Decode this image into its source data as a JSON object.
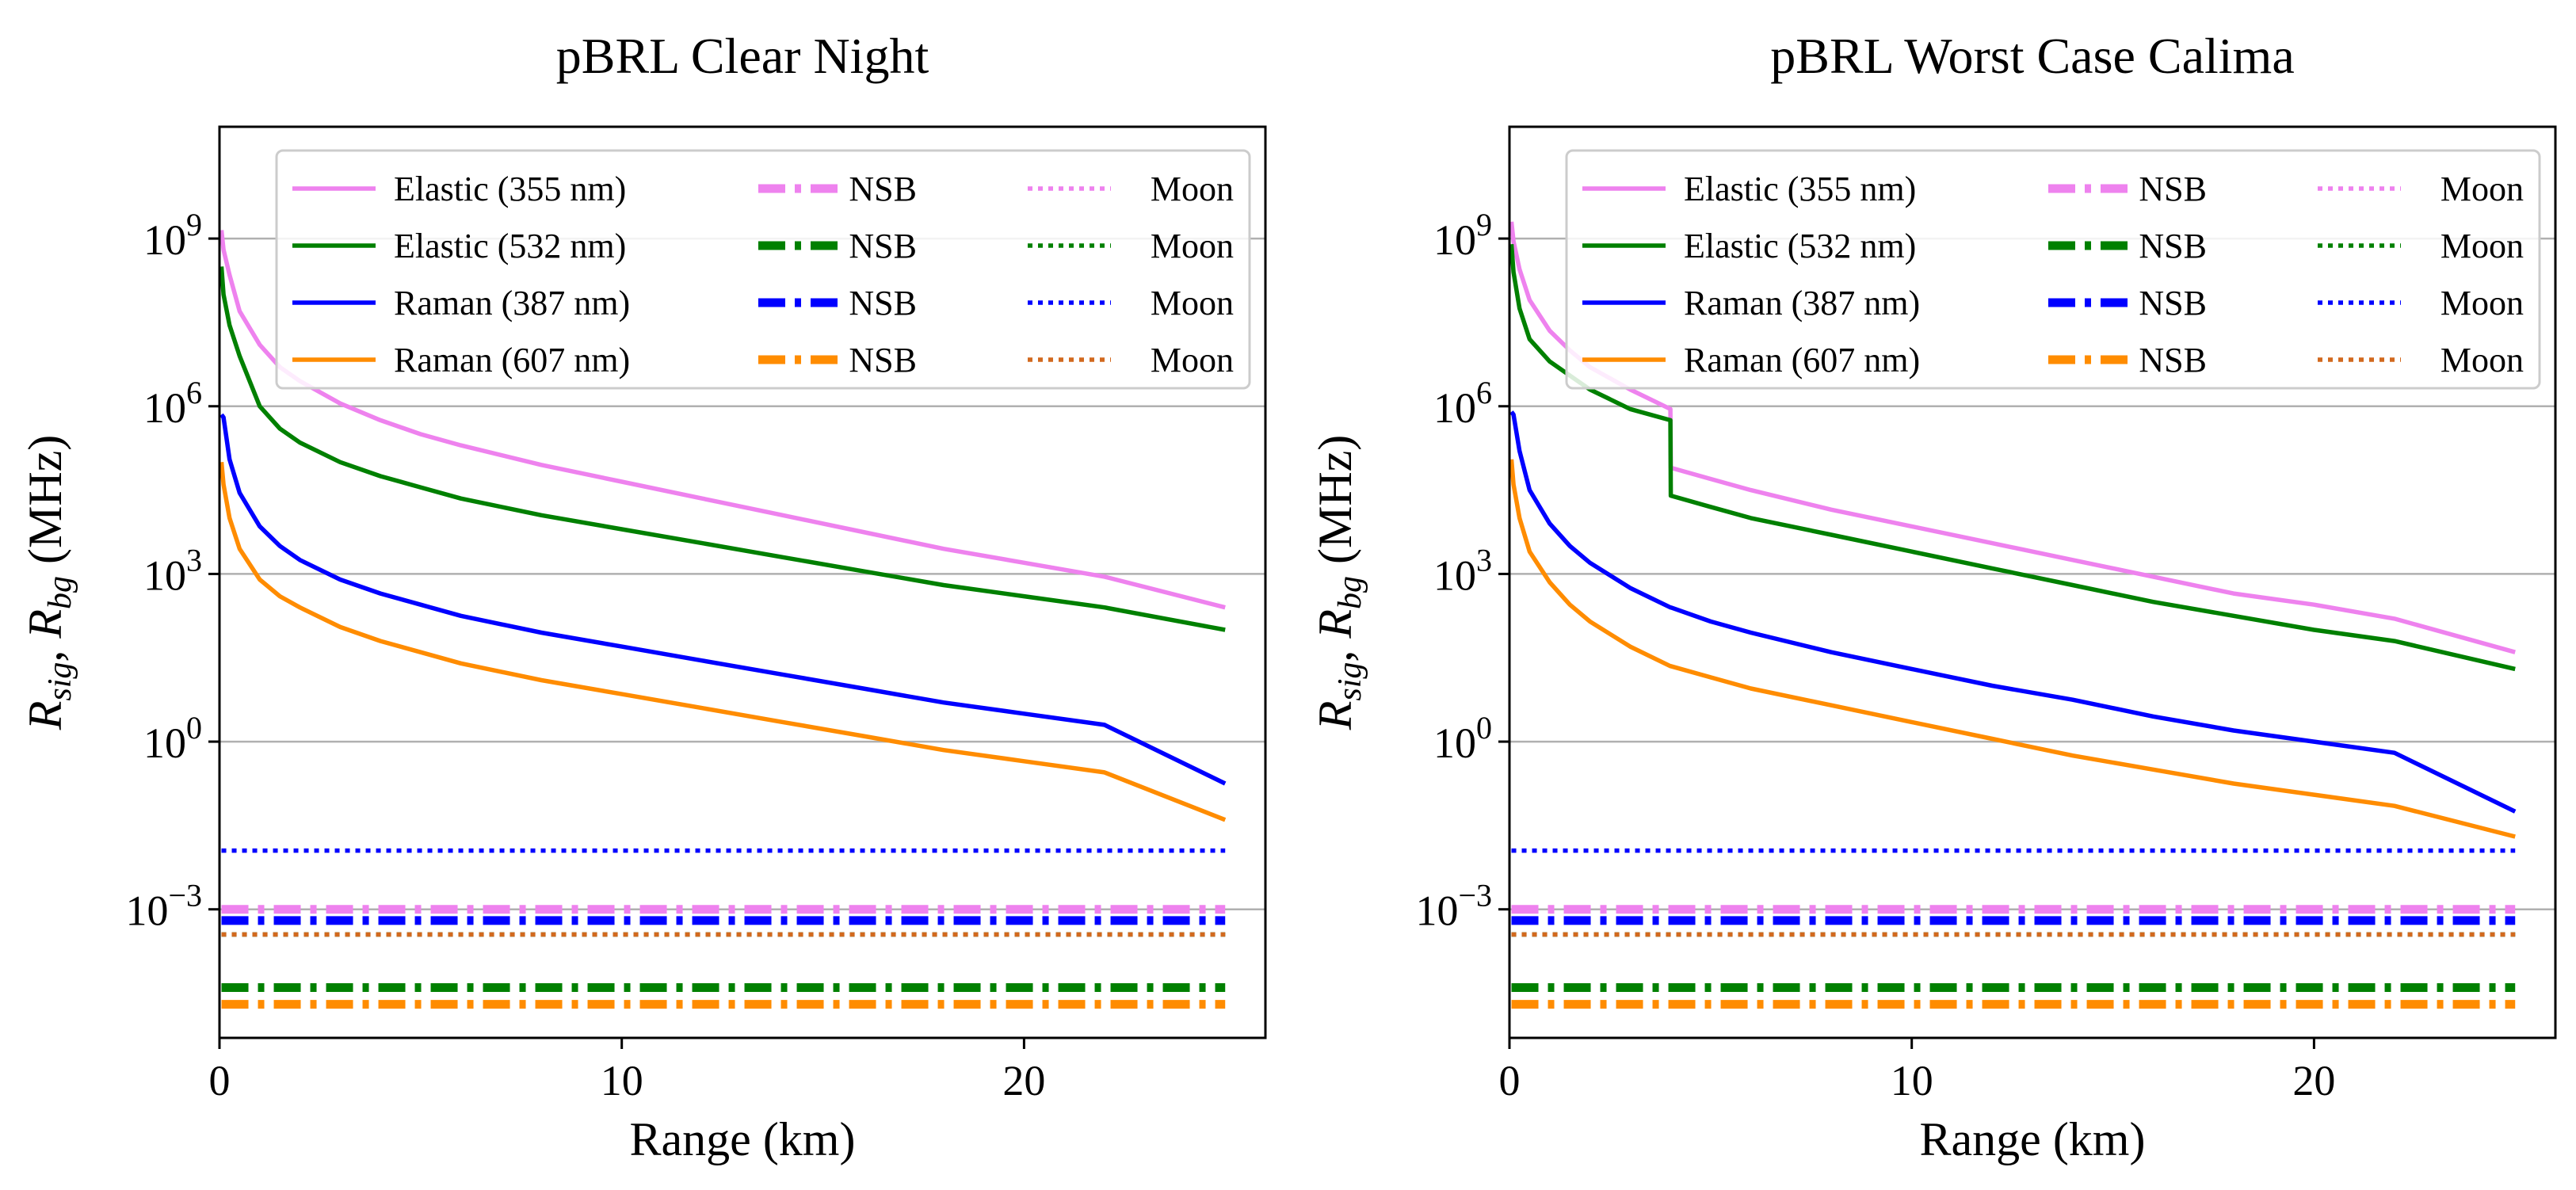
{
  "chart_data": [
    {
      "type": "line",
      "title": "pBRL Clear Night",
      "xlabel": "Range (km)",
      "ylabel_main": "R",
      "ylabel_sub1": "sig",
      "ylabel_sep": ", ",
      "ylabel_sub2": "bg",
      "ylabel_unit": " (MHz)",
      "yscale": "log",
      "xlim": [
        0,
        26
      ],
      "ylim_log10": [
        -5.3,
        11.0
      ],
      "xticks": [
        0,
        10,
        20
      ],
      "xtick_labels": [
        "0",
        "10",
        "20"
      ],
      "yticks_log10": [
        -3,
        0,
        3,
        6,
        9
      ],
      "ytick_base": "10",
      "ytick_exps": [
        "−3",
        "0",
        "3",
        "6",
        "9"
      ],
      "grid_y": true,
      "legend_position": "top-right",
      "signals": [
        {
          "name": "Elastic (355 nm)",
          "color": "#ee82ee",
          "x": [
            0.05,
            0.1,
            0.25,
            0.5,
            1,
            1.5,
            2,
            3,
            4,
            5,
            6,
            8,
            10,
            12,
            14,
            16,
            18,
            20,
            22,
            25
          ],
          "log10": [
            9.15,
            8.8,
            8.35,
            7.7,
            7.1,
            6.7,
            6.45,
            6.05,
            5.75,
            5.5,
            5.3,
            4.95,
            4.65,
            4.35,
            4.05,
            3.75,
            3.45,
            3.2,
            2.95,
            2.4
          ]
        },
        {
          "name": "Elastic (532 nm)",
          "color": "#008000",
          "x": [
            0.05,
            0.1,
            0.25,
            0.5,
            1,
            1.5,
            2,
            3,
            4,
            5,
            6,
            8,
            10,
            12,
            14,
            16,
            18,
            20,
            22,
            25
          ],
          "log10": [
            8.5,
            8.0,
            7.45,
            6.9,
            6.0,
            5.6,
            5.35,
            5.0,
            4.75,
            4.55,
            4.35,
            4.05,
            3.8,
            3.55,
            3.3,
            3.05,
            2.8,
            2.6,
            2.4,
            2.0
          ]
        },
        {
          "name": "Raman (387 nm)",
          "color": "#0000ff",
          "x": [
            0.05,
            0.1,
            0.25,
            0.5,
            1,
            1.5,
            2,
            3,
            4,
            5,
            6,
            8,
            10,
            12,
            14,
            16,
            18,
            20,
            22,
            25
          ],
          "log10": [
            5.85,
            5.8,
            5.05,
            4.45,
            3.85,
            3.5,
            3.25,
            2.9,
            2.65,
            2.45,
            2.25,
            1.95,
            1.7,
            1.45,
            1.2,
            0.95,
            0.7,
            0.5,
            0.3,
            -0.75
          ]
        },
        {
          "name": "Raman (607 nm)",
          "color": "#ff8c00",
          "x": [
            0.05,
            0.1,
            0.25,
            0.5,
            1,
            1.5,
            2,
            3,
            4,
            5,
            6,
            8,
            10,
            12,
            14,
            16,
            18,
            20,
            22,
            25
          ],
          "log10": [
            5.0,
            4.6,
            4.0,
            3.45,
            2.9,
            2.6,
            2.4,
            2.05,
            1.8,
            1.6,
            1.4,
            1.1,
            0.85,
            0.6,
            0.35,
            0.1,
            -0.15,
            -0.35,
            -0.55,
            -1.4
          ]
        }
      ],
      "nsb": [
        {
          "name": "NSB",
          "color": "#ee82ee",
          "log10": -3.0
        },
        {
          "name": "NSB",
          "color": "#008000",
          "log10": -4.4
        },
        {
          "name": "NSB",
          "color": "#0000ff",
          "log10": -3.2
        },
        {
          "name": "NSB",
          "color": "#ff8c00",
          "log10": -4.7
        }
      ],
      "moon": [
        {
          "name": "Moon",
          "color": "#ee82ee",
          "log10": -3.45
        },
        {
          "name": "Moon",
          "color": "#008000",
          "log10": -3.45
        },
        {
          "name": "Moon",
          "color": "#0000ff",
          "log10": -1.95
        },
        {
          "name": "Moon",
          "color": "#d2691e",
          "log10": -3.45
        }
      ]
    },
    {
      "type": "line",
      "title": "pBRL Worst Case Calima",
      "xlabel": "Range (km)",
      "ylabel_main": "R",
      "ylabel_sub1": "sig",
      "ylabel_sep": ", ",
      "ylabel_sub2": "bg",
      "ylabel_unit": " (MHz)",
      "yscale": "log",
      "xlim": [
        0,
        26
      ],
      "ylim_log10": [
        -5.3,
        11.0
      ],
      "xticks": [
        0,
        10,
        20
      ],
      "xtick_labels": [
        "0",
        "10",
        "20"
      ],
      "yticks_log10": [
        -3,
        0,
        3,
        6,
        9
      ],
      "ytick_base": "10",
      "ytick_exps": [
        "−3",
        "0",
        "3",
        "6",
        "9"
      ],
      "grid_y": true,
      "legend_position": "top-right",
      "signals": [
        {
          "name": "Elastic (355 nm)",
          "color": "#ee82ee",
          "x": [
            0.05,
            0.1,
            0.25,
            0.5,
            1,
            1.5,
            2,
            3,
            4,
            4.01,
            5,
            6,
            8,
            10,
            12,
            14,
            16,
            18,
            20,
            22,
            25
          ],
          "log10": [
            9.3,
            8.95,
            8.45,
            7.9,
            7.35,
            7.0,
            6.7,
            6.3,
            5.95,
            4.9,
            4.7,
            4.5,
            4.15,
            3.85,
            3.55,
            3.25,
            2.95,
            2.65,
            2.45,
            2.2,
            1.6
          ]
        },
        {
          "name": "Elastic (532 nm)",
          "color": "#008000",
          "x": [
            0.05,
            0.1,
            0.25,
            0.5,
            1,
            1.5,
            2,
            3,
            4,
            4.01,
            5,
            6,
            8,
            10,
            12,
            14,
            16,
            18,
            20,
            22,
            25
          ],
          "log10": [
            8.9,
            8.4,
            7.75,
            7.2,
            6.8,
            6.55,
            6.3,
            5.95,
            5.75,
            4.4,
            4.2,
            4.0,
            3.7,
            3.4,
            3.1,
            2.8,
            2.5,
            2.25,
            2.0,
            1.8,
            1.3
          ]
        },
        {
          "name": "Raman (387 nm)",
          "color": "#0000ff",
          "x": [
            0.05,
            0.1,
            0.25,
            0.5,
            1,
            1.5,
            2,
            3,
            4,
            4.01,
            5,
            6,
            8,
            10,
            12,
            14,
            16,
            18,
            20,
            22,
            25
          ],
          "log10": [
            5.9,
            5.85,
            5.2,
            4.5,
            3.9,
            3.5,
            3.2,
            2.75,
            2.4,
            2.4,
            2.15,
            1.95,
            1.6,
            1.3,
            1.0,
            0.75,
            0.45,
            0.2,
            0.0,
            -0.2,
            -1.25
          ]
        },
        {
          "name": "Raman (607 nm)",
          "color": "#ff8c00",
          "x": [
            0.05,
            0.1,
            0.25,
            0.5,
            1,
            1.5,
            2,
            3,
            4,
            4.01,
            5,
            6,
            8,
            10,
            12,
            14,
            16,
            18,
            20,
            22,
            25
          ],
          "log10": [
            5.05,
            4.6,
            4.0,
            3.4,
            2.85,
            2.45,
            2.15,
            1.7,
            1.35,
            1.35,
            1.15,
            0.95,
            0.65,
            0.35,
            0.05,
            -0.25,
            -0.5,
            -0.75,
            -0.95,
            -1.15,
            -1.7
          ]
        }
      ],
      "nsb": [
        {
          "name": "NSB",
          "color": "#ee82ee",
          "log10": -3.0
        },
        {
          "name": "NSB",
          "color": "#008000",
          "log10": -4.4
        },
        {
          "name": "NSB",
          "color": "#0000ff",
          "log10": -3.2
        },
        {
          "name": "NSB",
          "color": "#ff8c00",
          "log10": -4.7
        }
      ],
      "moon": [
        {
          "name": "Moon",
          "color": "#ee82ee",
          "log10": -3.45
        },
        {
          "name": "Moon",
          "color": "#008000",
          "log10": -3.45
        },
        {
          "name": "Moon",
          "color": "#0000ff",
          "log10": -1.95
        },
        {
          "name": "Moon",
          "color": "#d2691e",
          "log10": -3.45
        }
      ]
    }
  ]
}
